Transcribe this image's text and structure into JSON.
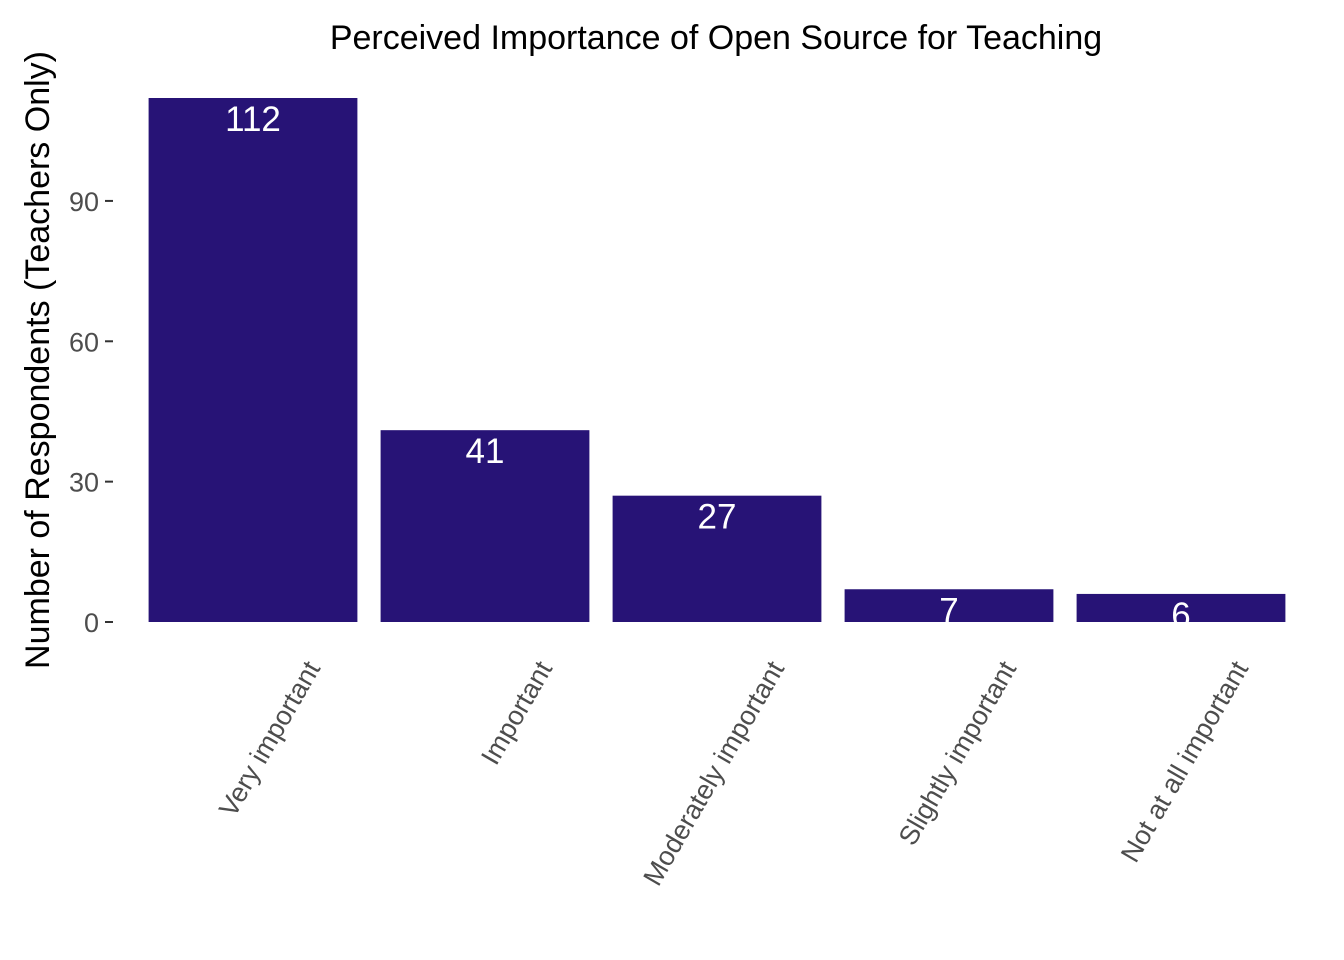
{
  "chart_data": {
    "type": "bar",
    "title": "Perceived Importance of Open Source for Teaching",
    "xlabel": "",
    "ylabel": "Number of Respondents (Teachers Only)",
    "categories": [
      "Very important",
      "Important",
      "Moderately important",
      "Slightly important",
      "Not at all important"
    ],
    "values": [
      112,
      41,
      27,
      7,
      6
    ],
    "value_labels": [
      "112",
      "41",
      "27",
      "7",
      "6"
    ],
    "y_ticks": [
      0,
      30,
      60,
      90
    ],
    "y_tick_labels": [
      "0",
      "30",
      "60",
      "90"
    ],
    "ylim": [
      0,
      112
    ],
    "grid": false,
    "legend": "none",
    "bar_color": "#271376",
    "value_label_color": "#ffffff"
  }
}
